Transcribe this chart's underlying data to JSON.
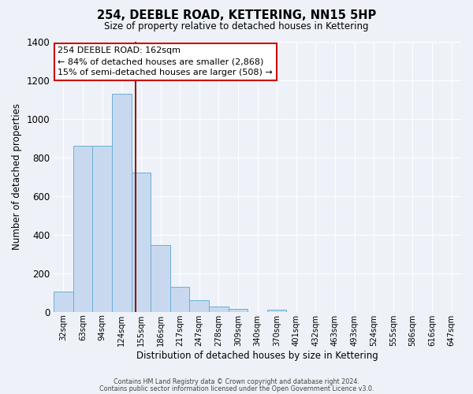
{
  "title": "254, DEEBLE ROAD, KETTERING, NN15 5HP",
  "subtitle": "Size of property relative to detached houses in Kettering",
  "xlabel": "Distribution of detached houses by size in Kettering",
  "ylabel": "Number of detached properties",
  "bin_labels": [
    "32sqm",
    "63sqm",
    "94sqm",
    "124sqm",
    "155sqm",
    "186sqm",
    "217sqm",
    "247sqm",
    "278sqm",
    "309sqm",
    "340sqm",
    "370sqm",
    "401sqm",
    "432sqm",
    "463sqm",
    "493sqm",
    "524sqm",
    "555sqm",
    "586sqm",
    "616sqm",
    "647sqm"
  ],
  "bar_heights": [
    107,
    858,
    858,
    1130,
    720,
    345,
    130,
    60,
    28,
    15,
    0,
    10,
    0,
    0,
    0,
    0,
    0,
    0,
    0,
    0,
    0
  ],
  "bar_color": "#c8d9ef",
  "bar_edge_color": "#6baed6",
  "vline_x_index": 4.52,
  "vline_color": "#8b1a1a",
  "annotation_text": "254 DEEBLE ROAD: 162sqm\n← 84% of detached houses are smaller (2,868)\n15% of semi-detached houses are larger (508) →",
  "annotation_box_color": "#ffffff",
  "annotation_box_edge": "#cc0000",
  "ylim": [
    0,
    1400
  ],
  "yticks": [
    0,
    200,
    400,
    600,
    800,
    1000,
    1200,
    1400
  ],
  "bg_color": "#eef2f8",
  "grid_color": "#ffffff",
  "footer_line1": "Contains HM Land Registry data © Crown copyright and database right 2024.",
  "footer_line2": "Contains public sector information licensed under the Open Government Licence v3.0."
}
